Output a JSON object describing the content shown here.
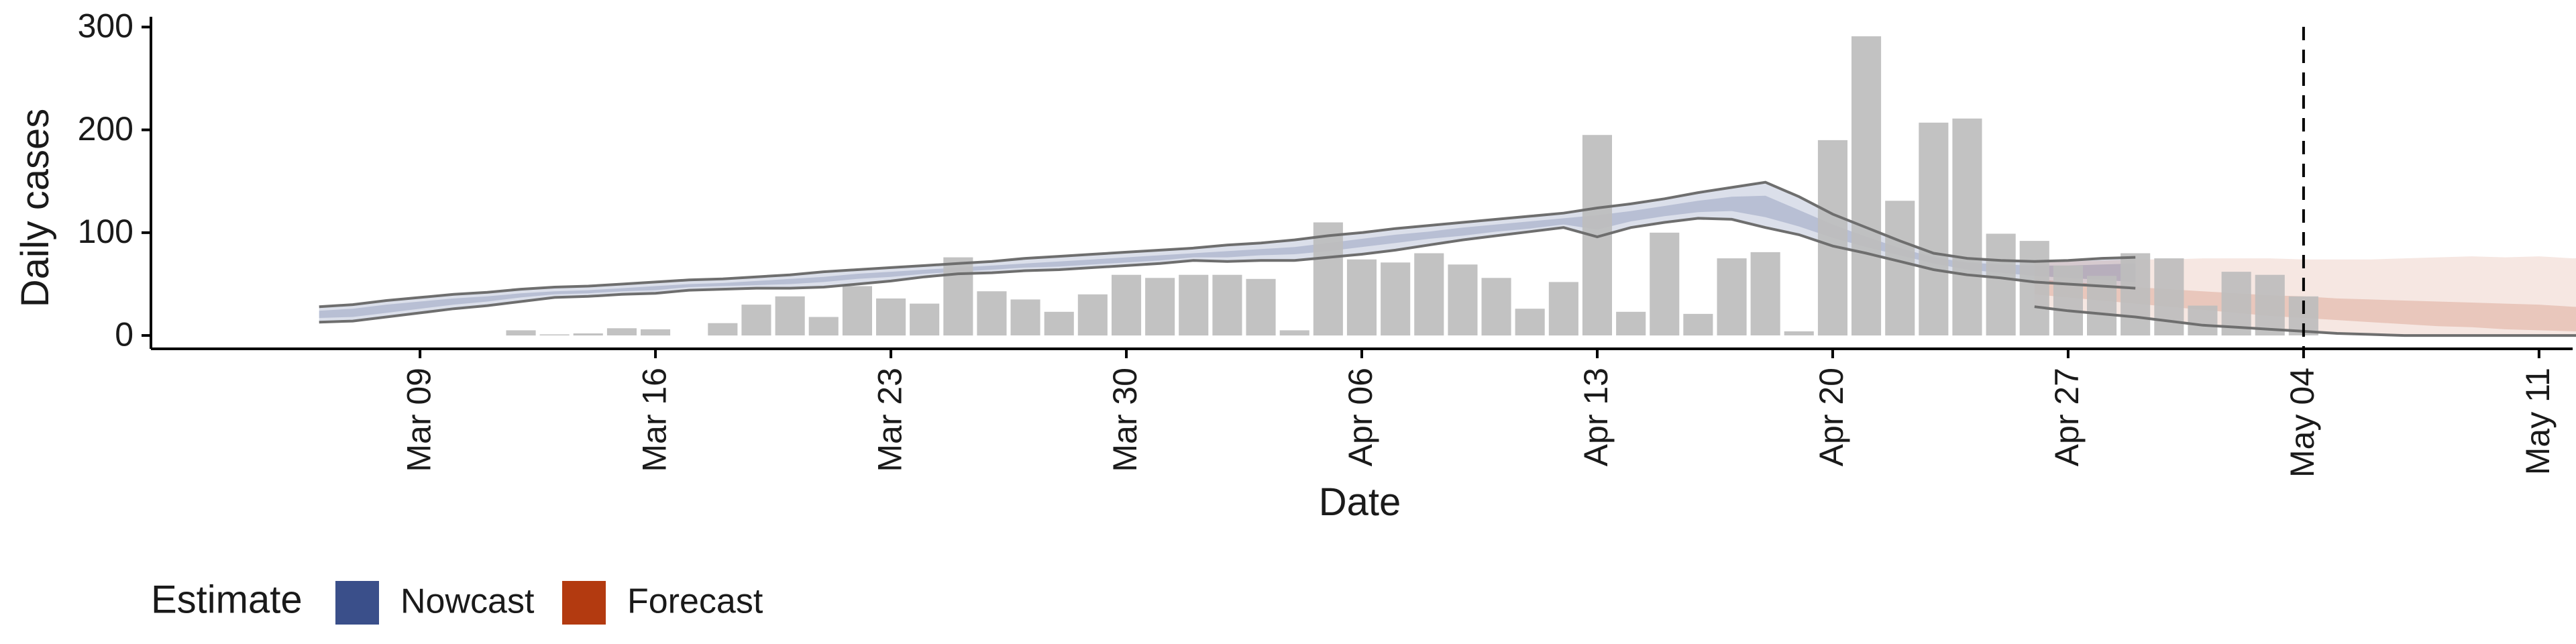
{
  "chart_data": {
    "type": "bar",
    "xlabel": "Date",
    "ylabel": "Daily cases",
    "ylim": [
      -13,
      310
    ],
    "yticks": [
      0,
      100,
      200,
      300
    ],
    "x_range": [
      "2020-03-01",
      "2020-05-12"
    ],
    "xticks": [
      {
        "date": "2020-03-09",
        "label": "Mar 09"
      },
      {
        "date": "2020-03-16",
        "label": "Mar 16"
      },
      {
        "date": "2020-03-23",
        "label": "Mar 23"
      },
      {
        "date": "2020-03-30",
        "label": "Mar 30"
      },
      {
        "date": "2020-04-06",
        "label": "Apr 06"
      },
      {
        "date": "2020-04-13",
        "label": "Apr 13"
      },
      {
        "date": "2020-04-20",
        "label": "Apr 20"
      },
      {
        "date": "2020-04-27",
        "label": "Apr 27"
      },
      {
        "date": "2020-05-04",
        "label": "May 04"
      },
      {
        "date": "2020-05-11",
        "label": "May 11"
      }
    ],
    "vline_date": "2020-05-04",
    "bars": {
      "start_date": "2020-03-12",
      "color": "#bdbdbd",
      "values": [
        5,
        1,
        2,
        7,
        6,
        0,
        12,
        30,
        38,
        18,
        48,
        36,
        31,
        76,
        43,
        35,
        23,
        40,
        59,
        56,
        59,
        59,
        55,
        5,
        110,
        74,
        71,
        80,
        69,
        56,
        26,
        52,
        195,
        23,
        100,
        21,
        75,
        81,
        4,
        190,
        291,
        131,
        207,
        211,
        99,
        92,
        68,
        58,
        80,
        75,
        29,
        62,
        59,
        38
      ]
    },
    "nowcast": {
      "color": "#3a4f8a",
      "start_date": "2020-03-06",
      "outer_upper": [
        28,
        30,
        34,
        37,
        40,
        42,
        45,
        47,
        48,
        50,
        52,
        54,
        55,
        57,
        59,
        62,
        64,
        66,
        68,
        70,
        72,
        75,
        77,
        79,
        81,
        83,
        85,
        88,
        90,
        93,
        97,
        100,
        104,
        107,
        110,
        113,
        116,
        119,
        124,
        128,
        133,
        139,
        144,
        149,
        135,
        118,
        105,
        92,
        80,
        75,
        73,
        72,
        73,
        75,
        76
      ],
      "outer_lower": [
        13,
        14,
        18,
        22,
        26,
        29,
        33,
        37,
        38,
        40,
        41,
        44,
        45,
        46,
        46,
        47,
        50,
        53,
        57,
        60,
        61,
        63,
        64,
        66,
        68,
        70,
        73,
        72,
        73,
        73,
        76,
        79,
        83,
        88,
        93,
        97,
        101,
        105,
        96,
        105,
        110,
        114,
        113,
        105,
        98,
        87,
        80,
        72,
        64,
        59,
        56,
        52,
        50,
        48,
        46
      ],
      "inner_upper": [
        24,
        26,
        30,
        33,
        36,
        38,
        41,
        43,
        44,
        46,
        48,
        50,
        51,
        53,
        55,
        57,
        60,
        62,
        64,
        66,
        68,
        70,
        72,
        74,
        76,
        78,
        80,
        82,
        84,
        86,
        90,
        94,
        98,
        101,
        105,
        108,
        111,
        114,
        117,
        121,
        126,
        131,
        135,
        136,
        122,
        108,
        96,
        85,
        76,
        71,
        69,
        68,
        68,
        69,
        70
      ],
      "inner_lower": [
        17,
        18,
        22,
        26,
        30,
        33,
        37,
        40,
        41,
        43,
        44,
        47,
        48,
        49,
        50,
        52,
        55,
        57,
        60,
        62,
        64,
        66,
        67,
        69,
        71,
        73,
        76,
        76,
        78,
        79,
        82,
        86,
        90,
        94,
        97,
        101,
        104,
        108,
        103,
        111,
        116,
        120,
        121,
        115,
        106,
        95,
        86,
        78,
        70,
        64,
        61,
        58,
        56,
        54,
        52
      ]
    },
    "forecast": {
      "color": "#b33a10",
      "start_date": "2020-04-26",
      "outer_upper": [
        72,
        72,
        73,
        74,
        74,
        75,
        75,
        75,
        74,
        74,
        74,
        75,
        76,
        77,
        76,
        77,
        75,
        76,
        78,
        74,
        73,
        75,
        77,
        78,
        75,
        77
      ],
      "outer_lower": [
        28,
        24,
        21,
        18,
        14,
        10,
        8,
        6,
        4,
        2,
        1,
        0,
        0,
        0,
        0,
        0,
        0,
        0,
        0,
        0,
        0,
        0,
        0,
        0,
        0,
        0
      ],
      "inner_upper": [
        55,
        52,
        50,
        47,
        45,
        43,
        41,
        39,
        38,
        36,
        35,
        34,
        33,
        32,
        31,
        30,
        28,
        27,
        25,
        24,
        22,
        21,
        20,
        19,
        18,
        18
      ],
      "inner_lower": [
        40,
        37,
        34,
        31,
        28,
        25,
        22,
        19,
        17,
        15,
        13,
        11,
        9,
        8,
        6,
        5,
        4,
        3,
        2,
        1,
        0,
        0,
        0,
        0,
        0,
        0
      ]
    },
    "legend": {
      "title": "Estimate",
      "items": [
        {
          "label": "Nowcast",
          "color": "#3a4f8a"
        },
        {
          "label": "Forecast",
          "color": "#b33a10"
        }
      ]
    }
  }
}
